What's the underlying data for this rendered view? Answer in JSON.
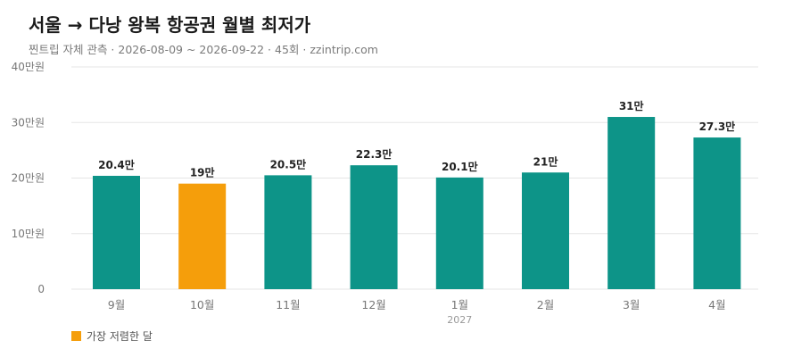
{
  "header": {
    "title": "서울 → 다낭 왕복 항공권 월별 최저가",
    "subtitle": "찐트립 자체 관측 · 2026-08-09 ~ 2026-09-22 · 45회 · zzintrip.com"
  },
  "legend": {
    "highlight_label": "가장 저렴한 달"
  },
  "colors": {
    "bar": "#0d9488",
    "highlight": "#f59e0b",
    "grid": "#e5e5e5",
    "axis_text": "#777777"
  },
  "chart_data": {
    "type": "bar",
    "title": "서울 → 다낭 왕복 항공권 월별 최저가",
    "categories": [
      "9월",
      "10월",
      "11월",
      "12월",
      "1월",
      "2월",
      "3월",
      "4월"
    ],
    "category_sublabels": [
      "",
      "",
      "",
      "",
      "2027",
      "",
      "",
      ""
    ],
    "values": [
      204000,
      190000,
      205000,
      223000,
      201000,
      210000,
      310000,
      273000
    ],
    "data_labels": [
      "20.4만",
      "19만",
      "20.5만",
      "22.3만",
      "20.1만",
      "21만",
      "31만",
      "27.3만"
    ],
    "highlight_index": 1,
    "ylim": [
      0,
      400000
    ],
    "yticks": [
      0,
      100000,
      200000,
      300000,
      400000
    ],
    "ytick_labels": [
      "0",
      "10만원",
      "20만원",
      "30만원",
      "40만원"
    ],
    "grid": true,
    "legend": "bottom-left"
  }
}
